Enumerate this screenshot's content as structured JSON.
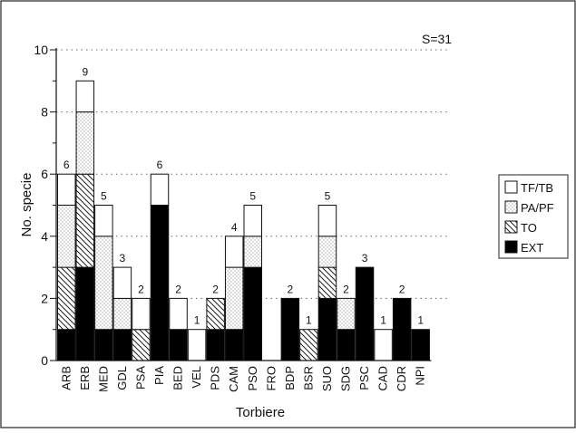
{
  "chart_data": {
    "type": "bar",
    "stacked": true,
    "annotation": "S=31",
    "xlabel": "Torbiere",
    "ylabel": "No. specie",
    "ylim": [
      0,
      10
    ],
    "y_ticks": [
      "0",
      "2",
      "4",
      "6",
      "8",
      "10"
    ],
    "grid": "horizontal dotted lines at 2, 4, 6, 8, 10",
    "legend_position": "right",
    "categories": [
      "ARB",
      "ERB",
      "MED",
      "GDL",
      "PSA",
      "PIA",
      "BED",
      "VEL",
      "PDS",
      "CAM",
      "PSO",
      "FRO",
      "BDP",
      "BSR",
      "SUO",
      "SDG",
      "PSC",
      "CAD",
      "CDR",
      "NPI"
    ],
    "totals": [
      6,
      9,
      5,
      3,
      2,
      6,
      2,
      1,
      2,
      4,
      5,
      0,
      2,
      1,
      5,
      2,
      3,
      1,
      2,
      1
    ],
    "series": [
      {
        "name": "EXT",
        "color": "#000000",
        "pattern": "solid",
        "values": [
          1,
          3,
          1,
          1,
          0,
          5,
          1,
          0,
          1,
          1,
          3,
          0,
          2,
          0,
          2,
          1,
          3,
          0,
          2,
          1
        ]
      },
      {
        "name": "TO",
        "color": "#ffffff",
        "pattern": "hatch",
        "values": [
          2,
          3,
          0,
          0,
          1,
          0,
          0,
          0,
          1,
          0,
          0,
          0,
          0,
          1,
          1,
          0,
          0,
          0,
          0,
          0
        ]
      },
      {
        "name": "PA/PF",
        "color": "#ffffff",
        "pattern": "dotted",
        "values": [
          2,
          2,
          3,
          1,
          0,
          0,
          0,
          0,
          0,
          2,
          1,
          0,
          0,
          0,
          1,
          1,
          0,
          0,
          0,
          0
        ]
      },
      {
        "name": "TF/TB",
        "color": "#ffffff",
        "pattern": "blank",
        "values": [
          1,
          1,
          1,
          1,
          1,
          1,
          1,
          1,
          0,
          1,
          1,
          0,
          0,
          0,
          1,
          0,
          0,
          1,
          0,
          0
        ]
      }
    ]
  }
}
